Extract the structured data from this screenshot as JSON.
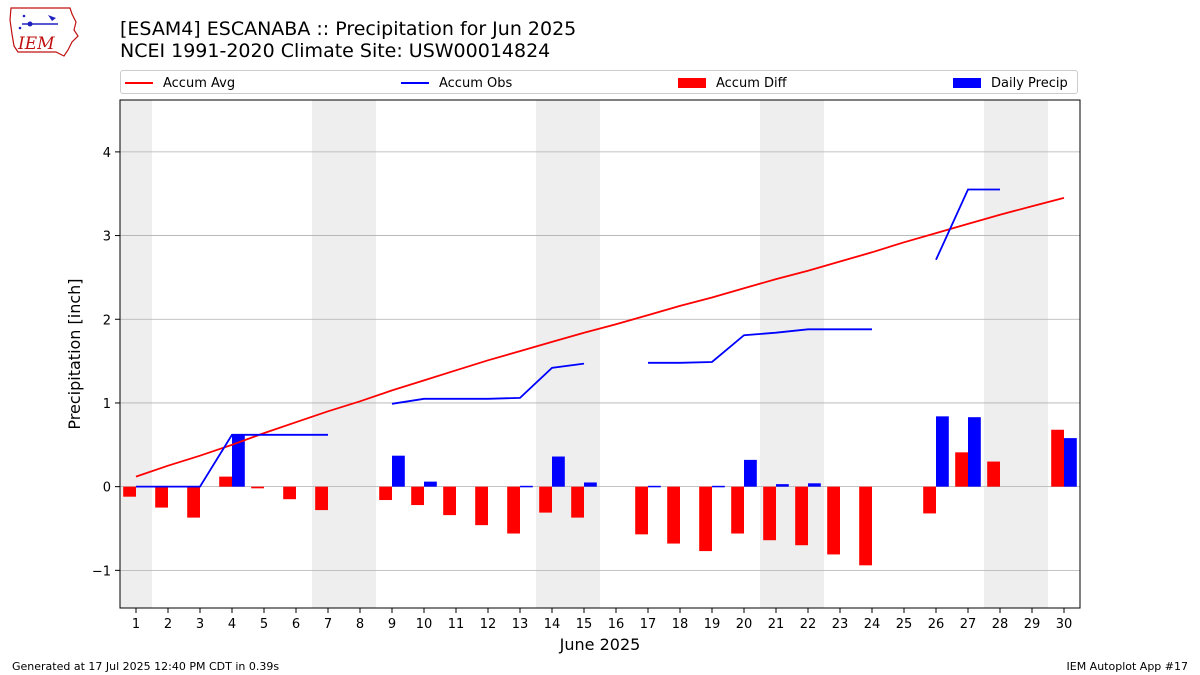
{
  "header": {
    "title_line1": "[ESAM4] ESCANABA :: Precipitation for Jun 2025",
    "title_line2": "NCEI 1991-2020 Climate Site: USW00014824"
  },
  "logo": {
    "text": "IEM",
    "icon": "iem-iowa-logo"
  },
  "footer": {
    "left": "Generated at 17 Jul 2025 12:40 PM CDT in 0.39s",
    "right": "IEM Autoplot App #17"
  },
  "colors": {
    "avg": "#ff0000",
    "obs": "#0000ff",
    "diff": "#ff0000",
    "daily": "#0000ff",
    "weekend": "#eeeeee",
    "grid": "#b0b0b0"
  },
  "chart_data": {
    "type": "bar",
    "xlabel": "June 2025",
    "ylabel": "Precipitation [inch]",
    "xlim": [
      0.5,
      30.5
    ],
    "ylim": [
      -1.45,
      4.62
    ],
    "yticks": [
      -1,
      0,
      1,
      2,
      3,
      4
    ],
    "ytick_labels": [
      "−1",
      "0",
      "1",
      "2",
      "3",
      "4"
    ],
    "grid": "horizontal",
    "legend_position": "top",
    "days": [
      1,
      2,
      3,
      4,
      5,
      6,
      7,
      8,
      9,
      10,
      11,
      12,
      13,
      14,
      15,
      16,
      17,
      18,
      19,
      20,
      21,
      22,
      23,
      24,
      25,
      26,
      27,
      28,
      29,
      30
    ],
    "weekend_days": [
      1,
      7,
      8,
      14,
      15,
      21,
      22,
      28,
      29
    ],
    "legend": [
      "Accum Avg",
      "Accum Obs",
      "Accum Diff",
      "Daily Precip"
    ],
    "series": [
      {
        "name": "Accum Avg",
        "kind": "line",
        "values": [
          0.12,
          0.25,
          0.37,
          0.5,
          0.64,
          0.77,
          0.9,
          1.02,
          1.15,
          1.27,
          1.39,
          1.51,
          1.62,
          1.73,
          1.84,
          1.94,
          2.05,
          2.16,
          2.26,
          2.37,
          2.48,
          2.58,
          2.69,
          2.8,
          2.92,
          3.03,
          3.14,
          3.25,
          3.35,
          3.45
        ]
      },
      {
        "name": "Accum Obs",
        "kind": "line",
        "values": [
          0.0,
          0.0,
          0.0,
          0.62,
          0.62,
          0.62,
          0.62,
          null,
          0.99,
          1.05,
          1.05,
          1.05,
          1.06,
          1.42,
          1.47,
          null,
          1.48,
          1.48,
          1.49,
          1.81,
          1.84,
          1.88,
          1.88,
          1.88,
          null,
          2.71,
          3.55,
          3.55,
          null,
          null
        ]
      },
      {
        "name": "Accum Diff",
        "kind": "bar",
        "values": [
          -0.12,
          -0.25,
          -0.37,
          0.12,
          -0.02,
          -0.15,
          -0.28,
          null,
          -0.16,
          -0.22,
          -0.34,
          -0.46,
          -0.56,
          -0.31,
          -0.37,
          null,
          -0.57,
          -0.68,
          -0.77,
          -0.56,
          -0.64,
          -0.7,
          -0.81,
          -0.94,
          null,
          -0.32,
          0.41,
          0.3,
          null,
          0.68
        ]
      },
      {
        "name": "Daily Precip",
        "kind": "bar",
        "values": [
          0,
          0,
          0,
          0.62,
          0,
          0,
          0,
          null,
          0.37,
          0.06,
          0,
          0,
          0.01,
          0.36,
          0.05,
          null,
          0.01,
          0,
          0.01,
          0.32,
          0.03,
          0.04,
          0,
          0,
          null,
          0.84,
          0.83,
          null,
          null,
          0.58
        ]
      }
    ]
  }
}
